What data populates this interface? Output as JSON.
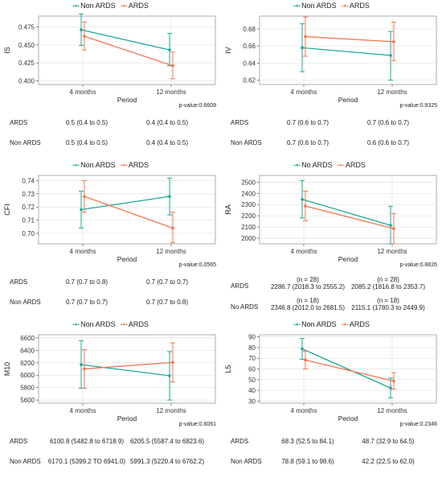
{
  "colors": {
    "non_ards": "#1fa99a",
    "ards": "#f07850"
  },
  "chart_data": [
    {
      "type": "line",
      "ylabel": "IS",
      "xlabel": "Period",
      "categories": [
        "4 months",
        "12 months"
      ],
      "ylim": [
        0.395,
        0.49
      ],
      "yticks": [
        0.4,
        0.425,
        0.45,
        0.475
      ],
      "ytick_labels": [
        "0.400",
        "0.425",
        "0.450",
        "0.475"
      ],
      "legend": [
        "Non ARDS",
        "ARDS"
      ],
      "series": [
        {
          "name": "Non ARDS",
          "color": "#1fa99a",
          "values": [
            0.471,
            0.443
          ],
          "lower": [
            0.449,
            0.421
          ],
          "upper": [
            0.493,
            0.466
          ]
        },
        {
          "name": "ARDS",
          "color": "#f07850",
          "values": [
            0.462,
            0.421
          ],
          "lower": [
            0.443,
            0.403
          ],
          "upper": [
            0.482,
            0.44
          ]
        }
      ],
      "pvalue": "p-value:0.6609",
      "table": {
        "rows": [
          {
            "label": "ARDS",
            "values": [
              "0.5 (0.4 to 0.5)",
              "0.4 (0.4 to 0.5)"
            ]
          },
          {
            "label": "Non ARDS",
            "values": [
              "0.5 (0.4 to 0.5)",
              "0.4 (0.4 to 0.5)"
            ]
          }
        ]
      }
    },
    {
      "type": "line",
      "ylabel": "IV",
      "xlabel": "Period",
      "categories": [
        "4 months",
        "12 months"
      ],
      "ylim": [
        0.615,
        0.695
      ],
      "yticks": [
        0.62,
        0.64,
        0.66,
        0.68
      ],
      "ytick_labels": [
        "0.62",
        "0.64",
        "0.66",
        "0.68"
      ],
      "legend": [
        "Non ARDS",
        "ARDS"
      ],
      "series": [
        {
          "name": "Non ARDS",
          "color": "#1fa99a",
          "values": [
            0.658,
            0.649
          ],
          "lower": [
            0.63,
            0.62
          ],
          "upper": [
            0.686,
            0.677
          ]
        },
        {
          "name": "ARDS",
          "color": "#f07850",
          "values": [
            0.671,
            0.665
          ],
          "lower": [
            0.648,
            0.643
          ],
          "upper": [
            0.694,
            0.688
          ]
        }
      ],
      "pvalue": "p-value:0.9325",
      "table": {
        "rows": [
          {
            "label": "ARDS",
            "values": [
              "0.7 (0.6 to 0.7)",
              "0.7 (0.6 to 0.7)"
            ]
          },
          {
            "label": "Non ARDS",
            "values": [
              "0.7 (0.6 to 0.7)",
              "0.6 (0.6 to 0.7)"
            ]
          }
        ]
      }
    },
    {
      "type": "line",
      "ylabel": "CFI",
      "xlabel": "Period",
      "categories": [
        "4 months",
        "12 months"
      ],
      "ylim": [
        0.692,
        0.744
      ],
      "yticks": [
        0.7,
        0.71,
        0.72,
        0.73,
        0.74
      ],
      "ytick_labels": [
        "0.70",
        "0.71",
        "0.72",
        "0.73",
        "0.74"
      ],
      "legend": [
        "Non ARDS",
        "ARDS"
      ],
      "series": [
        {
          "name": "Non ARDS",
          "color": "#1fa99a",
          "values": [
            0.718,
            0.728
          ],
          "lower": [
            0.704,
            0.714
          ],
          "upper": [
            0.732,
            0.742
          ]
        },
        {
          "name": "ARDS",
          "color": "#f07850",
          "values": [
            0.728,
            0.704
          ],
          "lower": [
            0.716,
            0.693
          ],
          "upper": [
            0.74,
            0.716
          ]
        }
      ],
      "pvalue": "p-value:0.0565",
      "table": {
        "rows": [
          {
            "label": "ARDS",
            "values": [
              "0.7 (0.7 to 0.8)",
              "0.7 (0.7 to 0.7)"
            ]
          },
          {
            "label": "Non ARDS",
            "values": [
              "0.7 (0.7 to 0.7)",
              "0.7 (0.7 to 0.8)"
            ]
          }
        ]
      }
    },
    {
      "type": "line",
      "ylabel": "RA",
      "xlabel": "Period",
      "categories": [
        "4 months",
        "12 months"
      ],
      "ylim": [
        1950,
        2560
      ],
      "yticks": [
        2000,
        2100,
        2200,
        2300,
        2400,
        2500
      ],
      "ytick_labels": [
        "2000",
        "2100",
        "2200",
        "2300",
        "2400",
        "2500"
      ],
      "legend": [
        "No ARDS",
        "ARDS"
      ],
      "series": [
        {
          "name": "No ARDS",
          "color": "#1fa99a",
          "values": [
            2346.8,
            2115.1
          ],
          "lower": [
            2180,
            1950
          ],
          "upper": [
            2515,
            2285
          ]
        },
        {
          "name": "ARDS",
          "color": "#f07850",
          "values": [
            2286.7,
            2085.2
          ],
          "lower": [
            2155,
            1950
          ],
          "upper": [
            2420,
            2220
          ]
        }
      ],
      "pvalue": "p-value:0.8826",
      "table": {
        "rows": [
          {
            "label": "ARDS",
            "n": [
              "(n = 28)",
              "(n = 28)"
            ],
            "values": [
              "2286.7 (2018.3 to 2555.2)",
              "2085.2 (1816.8 to 2353.7)"
            ]
          },
          {
            "label": "No ARDS",
            "n": [
              "(n = 18)",
              "(n = 18)"
            ],
            "values": [
              "2346.8 (2012.0 to 2681.5)",
              "2115.1 (1780.3 to 2449.9)"
            ]
          }
        ]
      }
    },
    {
      "type": "line",
      "ylabel": "M10",
      "xlabel": "Period",
      "categories": [
        "4 months",
        "12 months"
      ],
      "ylim": [
        5550,
        6650
      ],
      "yticks": [
        5600,
        5800,
        6000,
        6200,
        6400,
        6600
      ],
      "ytick_labels": [
        "5600",
        "5800",
        "6000",
        "6200",
        "6400",
        "6600"
      ],
      "legend": [
        "Non ARDS",
        "ARDS"
      ],
      "series": [
        {
          "name": "Non ARDS",
          "color": "#1fa99a",
          "values": [
            6170.1,
            5991.3
          ],
          "lower": [
            5790,
            5600
          ],
          "upper": [
            6555,
            6380
          ]
        },
        {
          "name": "ARDS",
          "color": "#f07850",
          "values": [
            6100.8,
            6205.5
          ],
          "lower": [
            5790,
            5890
          ],
          "upper": [
            6410,
            6520
          ]
        }
      ],
      "pvalue": "p-value:0.6061",
      "table": {
        "rows": [
          {
            "label": "ARDS",
            "values": [
              "6100.8 (5482.8 to 6718.9)",
              "6205.5 (5587.4 to 6823.6)"
            ]
          },
          {
            "label": "Non ARDS",
            "values": [
              "6170.1 (5399.2 TO 6941.0)",
              "5991.3 (5220.4 to 6762.2)"
            ]
          }
        ]
      }
    },
    {
      "type": "line",
      "ylabel": "L5",
      "xlabel": "Period",
      "categories": [
        "4 months",
        "12 months"
      ],
      "ylim": [
        28,
        92
      ],
      "yticks": [
        30,
        40,
        50,
        60,
        70,
        80,
        90
      ],
      "ytick_labels": [
        "30",
        "40",
        "50",
        "60",
        "70",
        "80",
        "90"
      ],
      "legend": [
        "Non ARDS",
        "ARDS"
      ],
      "series": [
        {
          "name": "Non ARDS",
          "color": "#1fa99a",
          "values": [
            78.8,
            42.2
          ],
          "lower": [
            69,
            33
          ],
          "upper": [
            88.5,
            51.5
          ]
        },
        {
          "name": "ARDS",
          "color": "#f07850",
          "values": [
            68.3,
            48.7
          ],
          "lower": [
            60,
            41
          ],
          "upper": [
            76.5,
            56.5
          ]
        }
      ],
      "pvalue": "p-value:0.2346",
      "table": {
        "rows": [
          {
            "label": "ARDS",
            "values": [
              "68.3 (52.5 to 84.1)",
              "48.7 (32.9 to 64.5)"
            ]
          },
          {
            "label": "Non ARDS",
            "values": [
              "78.8 (59.1 to 98.6)",
              "42.2 (22.5 to 62.0)"
            ]
          }
        ]
      }
    }
  ]
}
